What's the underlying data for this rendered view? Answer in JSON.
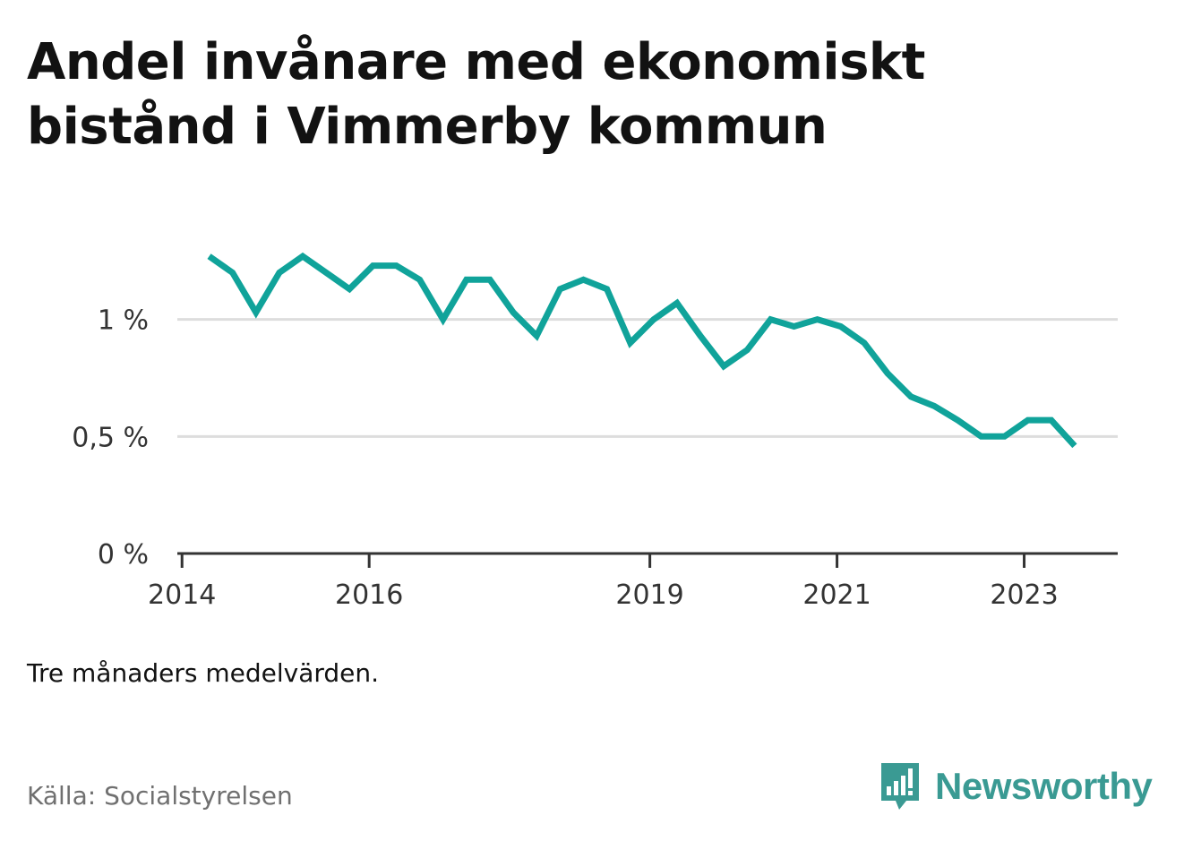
{
  "title": "Andel invånare med ekonomiskt bistånd i Vimmerby kommun",
  "note": "Tre månaders medelvärden.",
  "source": "Källa: Socialstyrelsen",
  "brand": "Newsworthy",
  "colors": {
    "line": "#10a39a",
    "grid": "#dddddd",
    "axis": "#333333",
    "brand": "#3a9a93"
  },
  "chart_data": {
    "type": "line",
    "title": "Andel invånare med ekonomiskt bistånd i Vimmerby kommun",
    "xlabel": "",
    "ylabel": "",
    "ylim": [
      0,
      1.37
    ],
    "yticks": [
      0,
      0.5,
      1
    ],
    "ytick_labels": [
      "0 %",
      "0,5 %",
      "1 %"
    ],
    "xticks": [
      2014,
      2016,
      2019,
      2021,
      2023
    ],
    "xtick_labels": [
      "2014",
      "2016",
      "2019",
      "2021",
      "2023"
    ],
    "grid": true,
    "series": [
      {
        "x": [
          2014.29,
          2014.54,
          2014.79,
          2015.04,
          2015.29,
          2015.54,
          2015.79,
          2016.04,
          2016.29,
          2016.54,
          2016.79,
          2017.04,
          2017.29,
          2017.54,
          2017.79,
          2018.04,
          2018.29,
          2018.54,
          2018.79,
          2019.04,
          2019.29,
          2019.54,
          2019.79,
          2020.04,
          2020.29,
          2020.54,
          2020.79,
          2021.04,
          2021.29,
          2021.54,
          2021.79,
          2022.04,
          2022.29,
          2022.54,
          2022.79,
          2023.04,
          2023.29,
          2023.54
        ],
        "values": [
          1.27,
          1.2,
          1.03,
          1.2,
          1.27,
          1.2,
          1.13,
          1.23,
          1.23,
          1.17,
          1.0,
          1.17,
          1.17,
          1.03,
          0.93,
          1.13,
          1.17,
          1.13,
          0.9,
          1.0,
          1.07,
          0.93,
          0.8,
          0.87,
          1.0,
          0.97,
          1.0,
          0.97,
          0.9,
          0.77,
          0.67,
          0.63,
          0.57,
          0.5,
          0.5,
          0.57,
          0.57,
          0.46
        ]
      }
    ]
  }
}
